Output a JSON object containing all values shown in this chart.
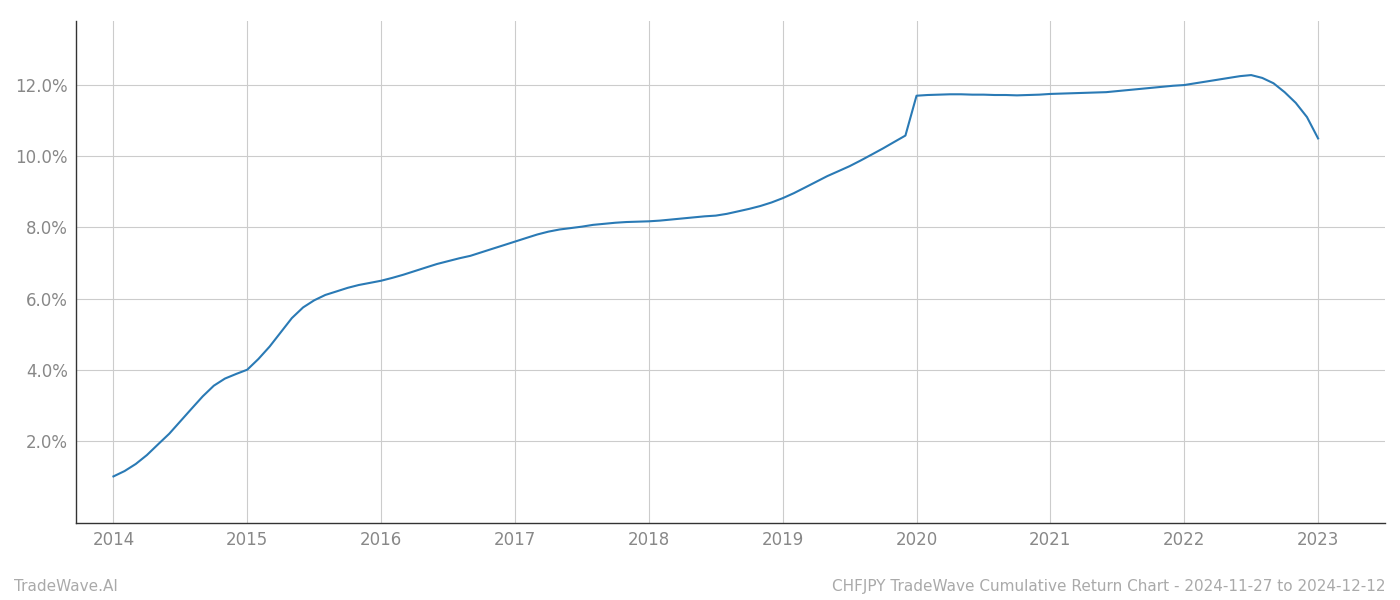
{
  "x": [
    2014.0,
    2014.083,
    2014.167,
    2014.25,
    2014.333,
    2014.417,
    2014.5,
    2014.583,
    2014.667,
    2014.75,
    2014.833,
    2014.917,
    2015.0,
    2015.083,
    2015.167,
    2015.25,
    2015.333,
    2015.417,
    2015.5,
    2015.583,
    2015.667,
    2015.75,
    2015.833,
    2015.917,
    2016.0,
    2016.083,
    2016.167,
    2016.25,
    2016.333,
    2016.417,
    2016.5,
    2016.583,
    2016.667,
    2016.75,
    2016.833,
    2016.917,
    2017.0,
    2017.083,
    2017.167,
    2017.25,
    2017.333,
    2017.417,
    2017.5,
    2017.583,
    2017.667,
    2017.75,
    2017.833,
    2017.917,
    2018.0,
    2018.083,
    2018.167,
    2018.25,
    2018.333,
    2018.417,
    2018.5,
    2018.583,
    2018.667,
    2018.75,
    2018.833,
    2018.917,
    2019.0,
    2019.083,
    2019.167,
    2019.25,
    2019.333,
    2019.417,
    2019.5,
    2019.583,
    2019.667,
    2019.75,
    2019.833,
    2019.917,
    2020.0,
    2020.083,
    2020.167,
    2020.25,
    2020.333,
    2020.417,
    2020.5,
    2020.583,
    2020.667,
    2020.75,
    2020.833,
    2020.917,
    2021.0,
    2021.083,
    2021.167,
    2021.25,
    2021.333,
    2021.417,
    2021.5,
    2021.583,
    2021.667,
    2021.75,
    2021.833,
    2021.917,
    2022.0,
    2022.083,
    2022.167,
    2022.25,
    2022.333,
    2022.417,
    2022.5,
    2022.583,
    2022.667,
    2022.75,
    2022.833,
    2022.917,
    2023.0
  ],
  "y": [
    1.0,
    1.15,
    1.35,
    1.6,
    1.9,
    2.2,
    2.55,
    2.9,
    3.25,
    3.55,
    3.75,
    3.88,
    4.0,
    4.3,
    4.65,
    5.05,
    5.45,
    5.75,
    5.95,
    6.1,
    6.2,
    6.3,
    6.38,
    6.44,
    6.5,
    6.58,
    6.67,
    6.77,
    6.87,
    6.97,
    7.05,
    7.13,
    7.2,
    7.3,
    7.4,
    7.5,
    7.6,
    7.7,
    7.8,
    7.88,
    7.94,
    7.98,
    8.02,
    8.07,
    8.1,
    8.13,
    8.15,
    8.16,
    8.17,
    8.19,
    8.22,
    8.25,
    8.28,
    8.31,
    8.33,
    8.38,
    8.45,
    8.52,
    8.6,
    8.7,
    8.82,
    8.96,
    9.12,
    9.28,
    9.44,
    9.58,
    9.72,
    9.88,
    10.05,
    10.22,
    10.4,
    10.58,
    11.7,
    11.72,
    11.73,
    11.74,
    11.74,
    11.73,
    11.73,
    11.72,
    11.72,
    11.71,
    11.72,
    11.73,
    11.75,
    11.76,
    11.77,
    11.78,
    11.79,
    11.8,
    11.83,
    11.86,
    11.89,
    11.92,
    11.95,
    11.98,
    12.0,
    12.05,
    12.1,
    12.15,
    12.2,
    12.25,
    12.28,
    12.2,
    12.05,
    11.8,
    11.5,
    11.1,
    10.5
  ],
  "line_color": "#2a7ab5",
  "line_width": 1.5,
  "background_color": "#ffffff",
  "grid_color": "#cccccc",
  "title": "CHFJPY TradeWave Cumulative Return Chart - 2024-11-27 to 2024-12-12",
  "footer_left": "TradeWave.AI",
  "yticks": [
    2.0,
    4.0,
    6.0,
    8.0,
    10.0,
    12.0
  ],
  "xticks": [
    2014,
    2015,
    2016,
    2017,
    2018,
    2019,
    2020,
    2021,
    2022,
    2023
  ],
  "xlim": [
    2013.72,
    2023.5
  ],
  "ylim": [
    -0.3,
    13.8
  ],
  "tick_label_color": "#888888",
  "title_color": "#aaaaaa",
  "footer_left_color": "#aaaaaa",
  "title_fontsize": 11,
  "tick_fontsize": 12,
  "footer_fontsize": 11,
  "spine_color": "#333333"
}
